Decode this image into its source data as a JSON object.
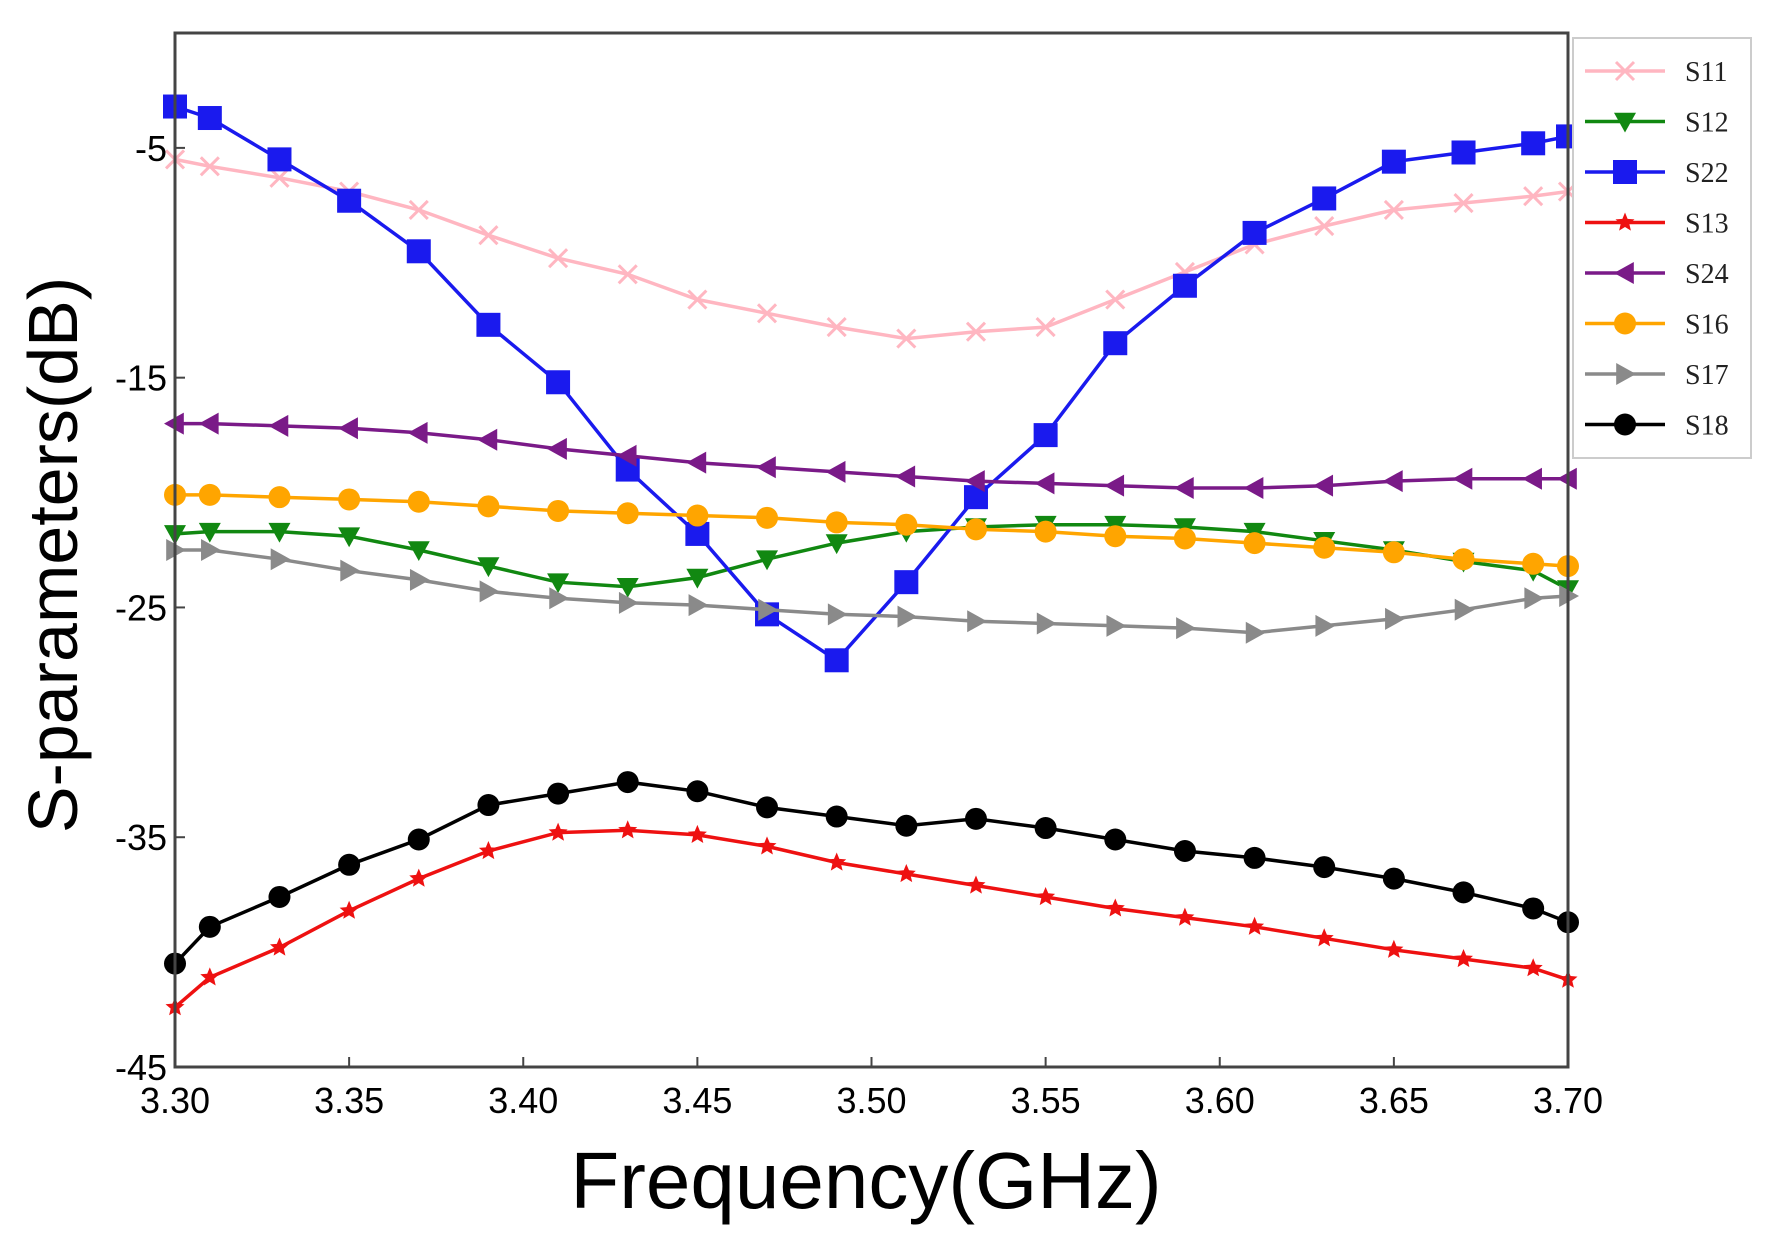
{
  "chart_data": {
    "type": "line",
    "xlabel": "Frequency(GHz)",
    "ylabel": "S-parameters(dB)",
    "xlim": [
      3.3,
      3.7
    ],
    "ylim": [
      -45,
      0
    ],
    "xticks": [
      3.3,
      3.35,
      3.4,
      3.45,
      3.5,
      3.55,
      3.6,
      3.65,
      3.7
    ],
    "xtick_labels": [
      "3.30",
      "3.35",
      "3.40",
      "3.45",
      "3.50",
      "3.55",
      "3.60",
      "3.65",
      "3.70"
    ],
    "yticks": [
      -45,
      -35,
      -25,
      -15,
      -5
    ],
    "ytick_labels": [
      "-45",
      "-35",
      "-25",
      "-15",
      "-5"
    ],
    "grid": false,
    "legend_position": "top-right-outside",
    "x": [
      3.3,
      3.31,
      3.33,
      3.35,
      3.37,
      3.39,
      3.41,
      3.43,
      3.45,
      3.47,
      3.49,
      3.51,
      3.53,
      3.55,
      3.57,
      3.59,
      3.61,
      3.63,
      3.65,
      3.67,
      3.69,
      3.7
    ],
    "series": [
      {
        "name": "S11",
        "color": "#ffb6c1",
        "marker": "x",
        "values": [
          -5.5,
          -5.8,
          -6.3,
          -6.9,
          -7.7,
          -8.8,
          -9.8,
          -10.5,
          -11.6,
          -12.2,
          -12.8,
          -13.3,
          -13.0,
          -12.8,
          -11.6,
          -10.4,
          -9.2,
          -8.4,
          -7.7,
          -7.4,
          -7.1,
          -6.9
        ]
      },
      {
        "name": "S12",
        "color": "#118811",
        "marker": "triangle-down",
        "values": [
          -21.8,
          -21.7,
          -21.7,
          -21.9,
          -22.5,
          -23.2,
          -23.9,
          -24.1,
          -23.7,
          -22.9,
          -22.2,
          -21.7,
          -21.5,
          -21.4,
          -21.4,
          -21.5,
          -21.7,
          -22.1,
          -22.5,
          -23.0,
          -23.4,
          -24.2
        ]
      },
      {
        "name": "S22",
        "color": "#1a1aee",
        "marker": "square",
        "values": [
          -3.2,
          -3.7,
          -5.5,
          -7.3,
          -9.5,
          -12.7,
          -15.2,
          -19.0,
          -21.8,
          -25.3,
          -27.3,
          -23.9,
          -20.2,
          -17.5,
          -13.5,
          -11.0,
          -8.7,
          -7.2,
          -5.6,
          -5.2,
          -4.8,
          -4.5
        ]
      },
      {
        "name": "S13",
        "color": "#ee1111",
        "marker": "star",
        "values": [
          -42.4,
          -41.1,
          -39.8,
          -38.2,
          -36.8,
          -35.6,
          -34.8,
          -34.7,
          -34.9,
          -35.4,
          -36.1,
          -36.6,
          -37.1,
          -37.6,
          -38.1,
          -38.5,
          -38.9,
          -39.4,
          -39.9,
          -40.3,
          -40.7,
          -41.2
        ]
      },
      {
        "name": "S24",
        "color": "#7a1a88",
        "marker": "triangle-left",
        "values": [
          -17.0,
          -17.0,
          -17.1,
          -17.2,
          -17.4,
          -17.7,
          -18.1,
          -18.4,
          -18.7,
          -18.9,
          -19.1,
          -19.3,
          -19.5,
          -19.6,
          -19.7,
          -19.8,
          -19.8,
          -19.7,
          -19.5,
          -19.4,
          -19.4,
          -19.4
        ]
      },
      {
        "name": "S16",
        "color": "#ffa500",
        "marker": "circle",
        "values": [
          -20.1,
          -20.1,
          -20.2,
          -20.3,
          -20.4,
          -20.6,
          -20.8,
          -20.9,
          -21.0,
          -21.1,
          -21.3,
          -21.4,
          -21.6,
          -21.7,
          -21.9,
          -22.0,
          -22.2,
          -22.4,
          -22.6,
          -22.9,
          -23.1,
          -23.2
        ]
      },
      {
        "name": "S17",
        "color": "#8a8a8a",
        "marker": "triangle-right",
        "values": [
          -22.5,
          -22.5,
          -22.9,
          -23.4,
          -23.8,
          -24.3,
          -24.6,
          -24.8,
          -24.9,
          -25.1,
          -25.3,
          -25.4,
          -25.6,
          -25.7,
          -25.8,
          -25.9,
          -26.1,
          -25.8,
          -25.5,
          -25.1,
          -24.6,
          -24.5
        ]
      },
      {
        "name": "S18",
        "color": "#000000",
        "marker": "circle",
        "values": [
          -40.5,
          -38.9,
          -37.6,
          -36.2,
          -35.1,
          -33.6,
          -33.1,
          -32.6,
          -33.0,
          -33.7,
          -34.1,
          -34.5,
          -34.2,
          -34.6,
          -35.1,
          -35.6,
          -35.9,
          -36.3,
          -36.8,
          -37.4,
          -38.1,
          -38.7
        ]
      }
    ]
  }
}
